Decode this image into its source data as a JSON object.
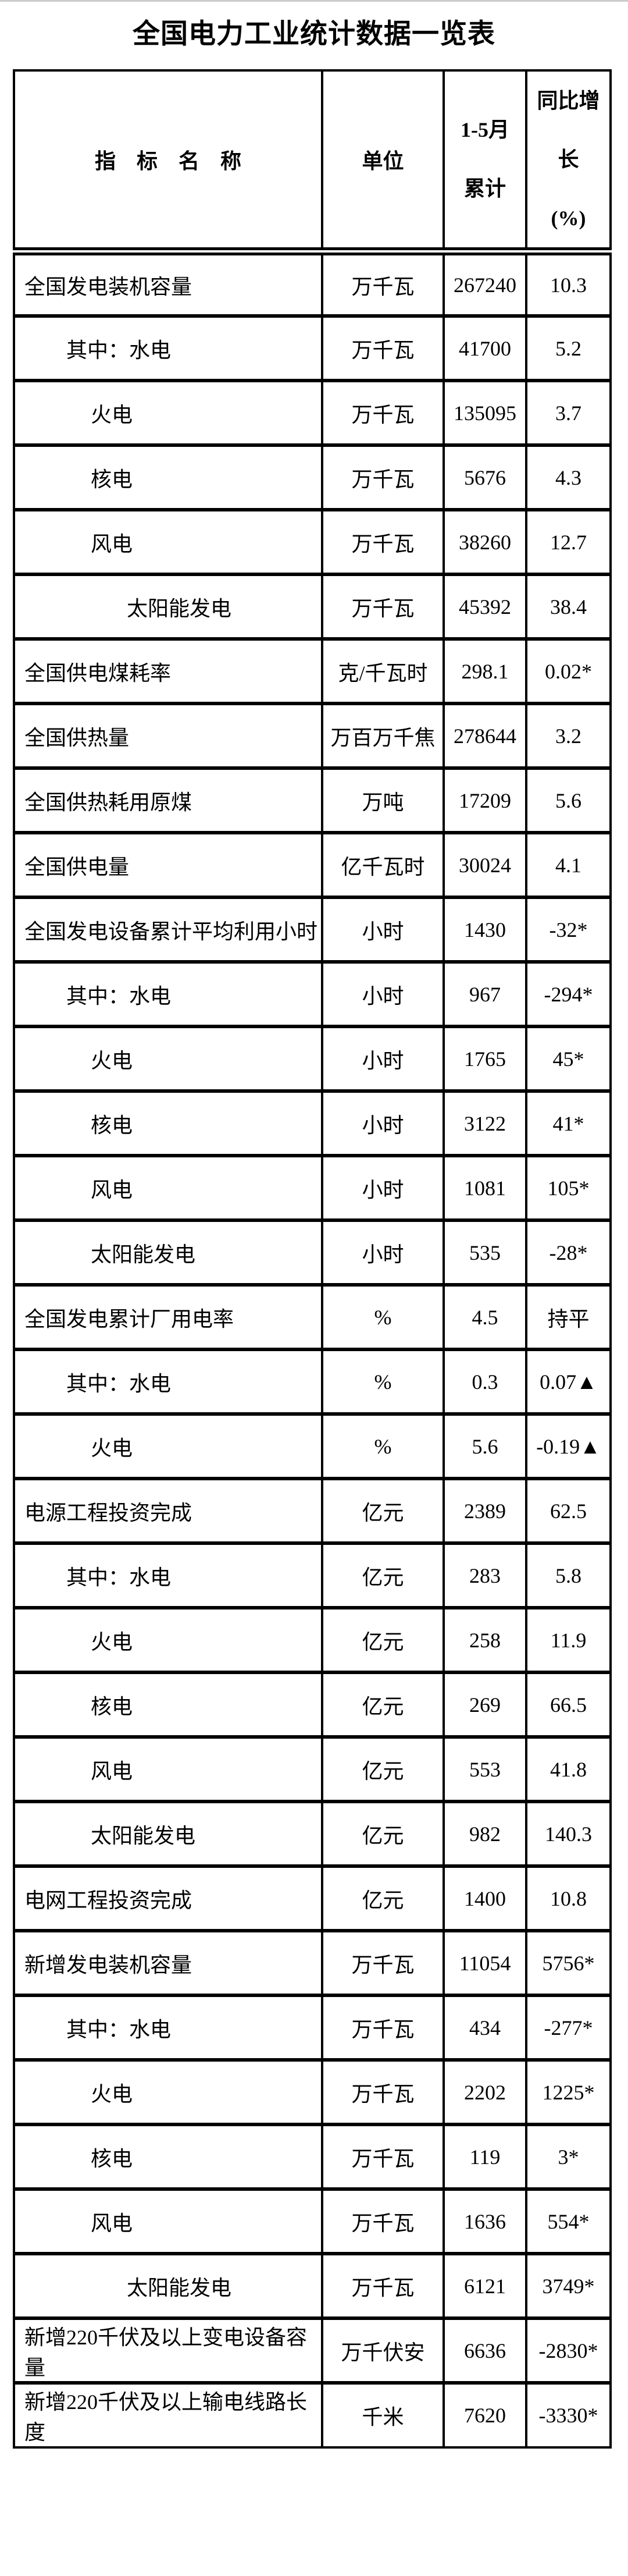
{
  "page": {
    "title": "全国电力工业统计数据一览表"
  },
  "colors": {
    "background": "#ffffff",
    "border": "#000000",
    "text": "#000000",
    "top_strip": "#cccccc"
  },
  "table": {
    "headers": {
      "indicator": "指　标　名　称",
      "unit": "单位",
      "period": "1-5月\n累计",
      "growth": "同比增\n长\n(%)"
    },
    "rows": [
      {
        "indicator": "全国发电装机容量",
        "indent": 0,
        "unit": "万千瓦",
        "value": "267240",
        "growth": "10.3"
      },
      {
        "indicator": "其中：水电",
        "indent": 1,
        "unit": "万千瓦",
        "value": "41700",
        "growth": "5.2"
      },
      {
        "indicator": "火电",
        "indent": 2,
        "unit": "万千瓦",
        "value": "135095",
        "growth": "3.7"
      },
      {
        "indicator": "核电",
        "indent": 2,
        "unit": "万千瓦",
        "value": "5676",
        "growth": "4.3"
      },
      {
        "indicator": "风电",
        "indent": 2,
        "unit": "万千瓦",
        "value": "38260",
        "growth": "12.7"
      },
      {
        "indicator": "太阳能发电",
        "indent": 3,
        "unit": "万千瓦",
        "value": "45392",
        "growth": "38.4"
      },
      {
        "indicator": "全国供电煤耗率",
        "indent": 0,
        "unit": "克/千瓦时",
        "value": "298.1",
        "growth": "0.02*"
      },
      {
        "indicator": "全国供热量",
        "indent": 0,
        "unit": "万百万千焦",
        "value": "278644",
        "growth": "3.2"
      },
      {
        "indicator": "全国供热耗用原煤",
        "indent": 0,
        "unit": "万吨",
        "value": "17209",
        "growth": "5.6"
      },
      {
        "indicator": "全国供电量",
        "indent": 0,
        "unit": "亿千瓦时",
        "value": "30024",
        "growth": "4.1"
      },
      {
        "indicator": "全国发电设备累计平均利用小时",
        "indent": 0,
        "unit": "小时",
        "value": "1430",
        "growth": "-32*"
      },
      {
        "indicator": "其中：水电",
        "indent": 1,
        "unit": "小时",
        "value": "967",
        "growth": "-294*"
      },
      {
        "indicator": "火电",
        "indent": 2,
        "unit": "小时",
        "value": "1765",
        "growth": "45*"
      },
      {
        "indicator": "核电",
        "indent": 2,
        "unit": "小时",
        "value": "3122",
        "growth": "41*"
      },
      {
        "indicator": "风电",
        "indent": 2,
        "unit": "小时",
        "value": "1081",
        "growth": "105*"
      },
      {
        "indicator": "太阳能发电",
        "indent": 2,
        "unit": "小时",
        "value": "535",
        "growth": "-28*"
      },
      {
        "indicator": "全国发电累计厂用电率",
        "indent": 0,
        "unit": "%",
        "value": "4.5",
        "growth": "持平"
      },
      {
        "indicator": "其中：水电",
        "indent": 1,
        "unit": "%",
        "value": "0.3",
        "growth": "0.07▲"
      },
      {
        "indicator": "火电",
        "indent": 2,
        "unit": "%",
        "value": "5.6",
        "growth": "-0.19▲"
      },
      {
        "indicator": "电源工程投资完成",
        "indent": 0,
        "unit": "亿元",
        "value": "2389",
        "growth": "62.5"
      },
      {
        "indicator": "其中：水电",
        "indent": 1,
        "unit": "亿元",
        "value": "283",
        "growth": "5.8"
      },
      {
        "indicator": "火电",
        "indent": 2,
        "unit": "亿元",
        "value": "258",
        "growth": "11.9"
      },
      {
        "indicator": "核电",
        "indent": 2,
        "unit": "亿元",
        "value": "269",
        "growth": "66.5"
      },
      {
        "indicator": "风电",
        "indent": 2,
        "unit": "亿元",
        "value": "553",
        "growth": "41.8"
      },
      {
        "indicator": "太阳能发电",
        "indent": 2,
        "unit": "亿元",
        "value": "982",
        "growth": "140.3"
      },
      {
        "indicator": "电网工程投资完成",
        "indent": 0,
        "unit": "亿元",
        "value": "1400",
        "growth": "10.8"
      },
      {
        "indicator": "新增发电装机容量",
        "indent": 0,
        "unit": "万千瓦",
        "value": "11054",
        "growth": "5756*"
      },
      {
        "indicator": "其中：水电",
        "indent": 1,
        "unit": "万千瓦",
        "value": "434",
        "growth": "-277*"
      },
      {
        "indicator": "火电",
        "indent": 2,
        "unit": "万千瓦",
        "value": "2202",
        "growth": "1225*"
      },
      {
        "indicator": "核电",
        "indent": 2,
        "unit": "万千瓦",
        "value": "119",
        "growth": "3*"
      },
      {
        "indicator": "风电",
        "indent": 2,
        "unit": "万千瓦",
        "value": "1636",
        "growth": "554*"
      },
      {
        "indicator": "太阳能发电",
        "indent": 3,
        "unit": "万千瓦",
        "value": "6121",
        "growth": "3749*"
      },
      {
        "indicator": "新增220千伏及以上变电设备容量",
        "indent": 0,
        "unit": "万千伏安",
        "value": "6636",
        "growth": "-2830*"
      },
      {
        "indicator": "新增220千伏及以上输电线路长度",
        "indent": 0,
        "unit": "千米",
        "value": "7620",
        "growth": "-3330*"
      }
    ]
  }
}
